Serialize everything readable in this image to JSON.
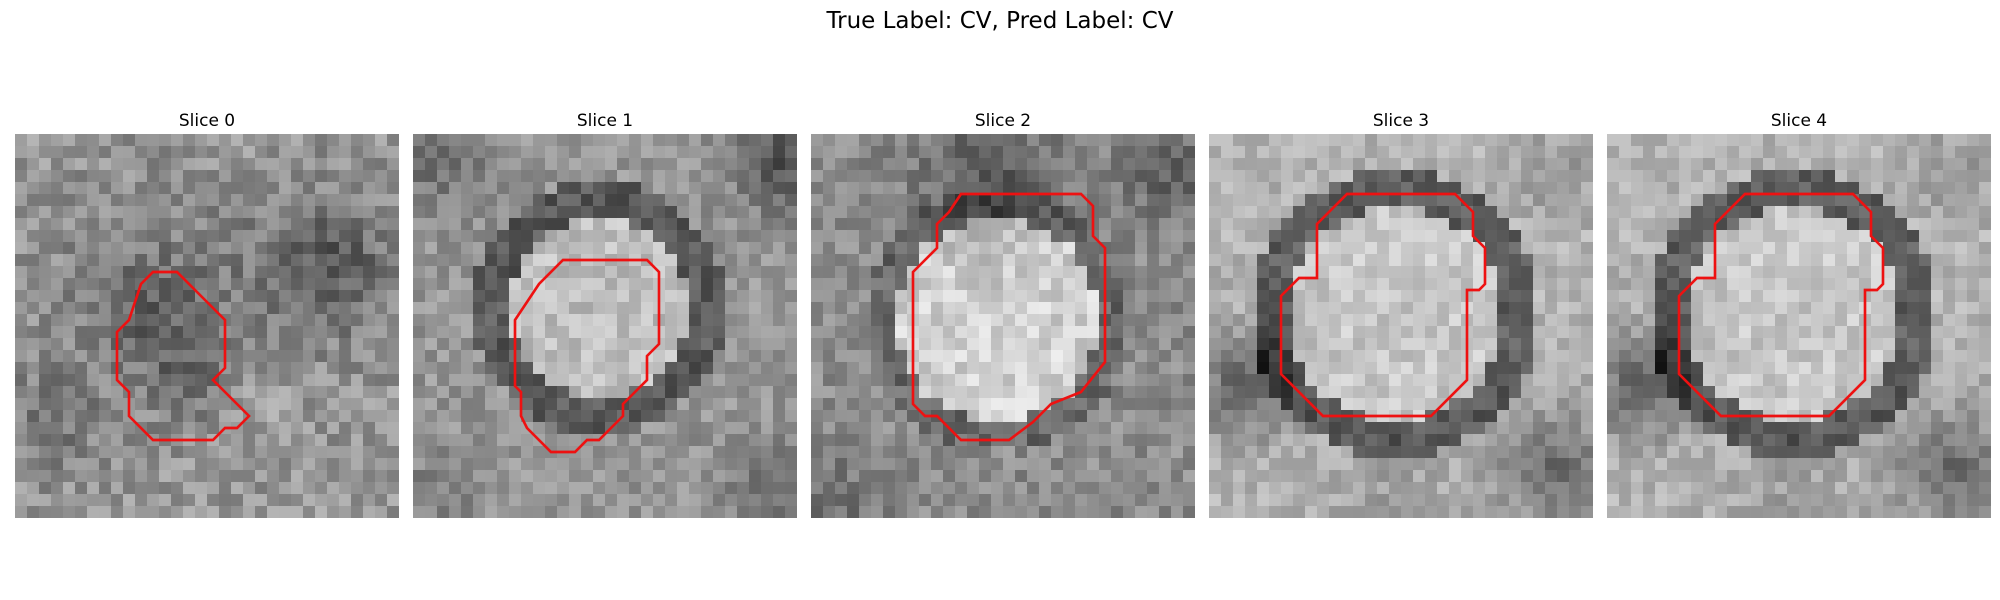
{
  "figure": {
    "title": "True Label: CV, Pred Label: CV",
    "contour_color": "#ee1111",
    "panels": [
      {
        "title": "Slice 0"
      },
      {
        "title": "Slice 1"
      },
      {
        "title": "Slice 2"
      },
      {
        "title": "Slice 3"
      },
      {
        "title": "Slice 4"
      }
    ]
  }
}
